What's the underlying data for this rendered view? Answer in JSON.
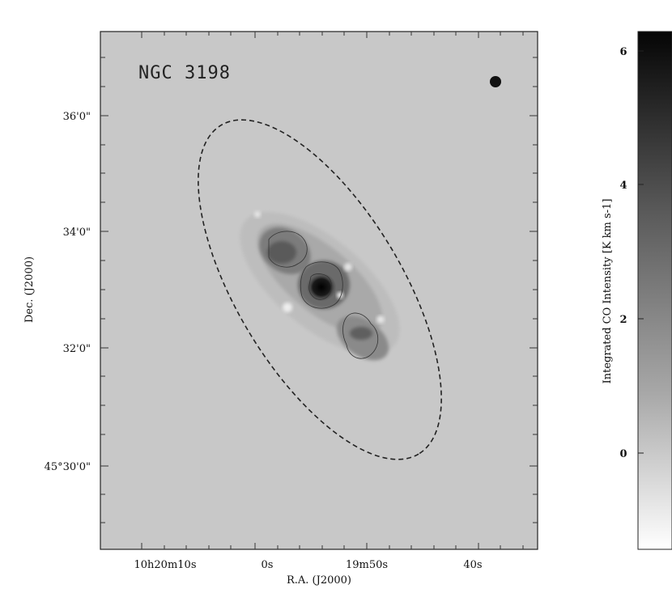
{
  "figure": {
    "object_name": "NGC 3198",
    "x_axis_label": "R.A. (J2000)",
    "y_axis_label": "Dec. (J2000)",
    "x_ticks": [
      "10h20m10s",
      "0s",
      "19m50s",
      "40s"
    ],
    "y_ticks": [
      "36'0\"",
      "34'0\"",
      "32'0\"",
      "45°30'0\""
    ],
    "colorbar_label": "Integrated CO Intensity [K km s-1]",
    "colorbar_ticks": [
      "6",
      "4",
      "2",
      "0"
    ]
  },
  "colors": {
    "map_background": "#c8c8c8",
    "frame": "#222222",
    "peak": "#0a0a0a"
  },
  "icons": {
    "beam": "filled-circle",
    "galaxy_outline": "dashed-ellipse"
  }
}
